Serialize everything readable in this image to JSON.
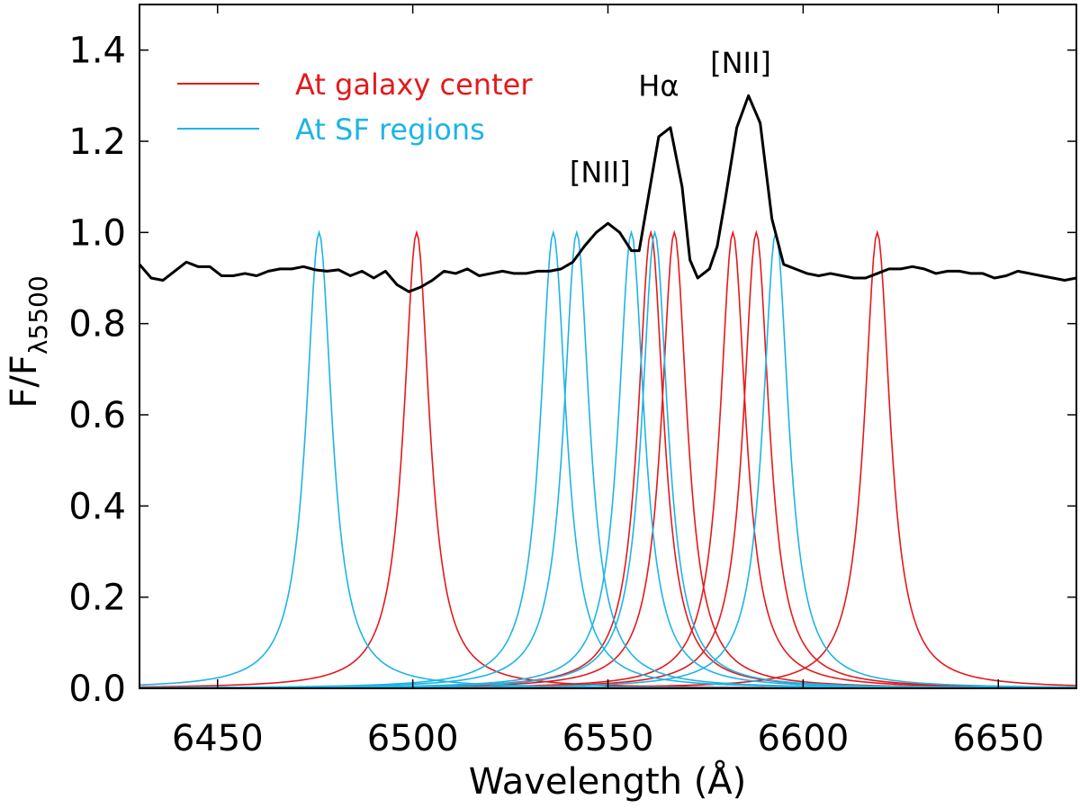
{
  "chart_data": {
    "type": "line",
    "title": "",
    "xlabel": "Wavelength (Å)",
    "ylabel_main": "F/F",
    "ylabel_sub": "λ5500",
    "xlim": [
      6430,
      6670
    ],
    "ylim": [
      0.0,
      1.5
    ],
    "xticks": [
      6450,
      6500,
      6550,
      6600,
      6650
    ],
    "yticks": [
      0.0,
      0.2,
      0.4,
      0.6,
      0.8,
      1.0,
      1.2,
      1.4
    ],
    "xtick_labels": [
      "6450",
      "6500",
      "6550",
      "6600",
      "6650"
    ],
    "ytick_labels": [
      "0.0",
      "0.2",
      "0.4",
      "0.6",
      "0.8",
      "1.0",
      "1.2",
      "1.4"
    ],
    "grid": false,
    "legend": {
      "placement": "top-left",
      "entries": [
        {
          "label": "At galaxy center",
          "color": "#e31a1c"
        },
        {
          "label": "At SF regions",
          "color": "#1eb4e6"
        }
      ]
    },
    "annotations": [
      {
        "text": "[NII]",
        "x": 6548,
        "y": 1.11
      },
      {
        "text": "Hα",
        "x": 6563,
        "y": 1.3
      },
      {
        "text": "[NII]",
        "x": 6584,
        "y": 1.35
      }
    ],
    "filter_width_angstrom": 8,
    "series": [
      {
        "name": "At galaxy center",
        "color": "#e31a1c",
        "kind": "filter",
        "centers": [
          6501,
          6561,
          6567,
          6582,
          6588,
          6619
        ],
        "peak": 1.0
      },
      {
        "name": "At SF regions",
        "color": "#1eb4e6",
        "kind": "filter",
        "centers": [
          6476,
          6536,
          6542,
          6556,
          6562,
          6593
        ],
        "peak": 1.0
      },
      {
        "name": "Spectrum",
        "color": "#000000",
        "kind": "spectrum",
        "x": [
          6430,
          6433,
          6436,
          6439,
          6442,
          6445,
          6448,
          6451,
          6454,
          6457,
          6460,
          6463,
          6466,
          6469,
          6472,
          6475,
          6478,
          6481,
          6484,
          6487,
          6490,
          6493,
          6496,
          6499,
          6502,
          6505,
          6508,
          6511,
          6514,
          6517,
          6520,
          6523,
          6526,
          6529,
          6532,
          6535,
          6538,
          6541,
          6544,
          6547,
          6550,
          6553,
          6556,
          6558,
          6560,
          6563,
          6566,
          6569,
          6571,
          6573,
          6576,
          6578,
          6580,
          6583,
          6586,
          6589,
          6592,
          6595,
          6598,
          6601,
          6604,
          6607,
          6610,
          6613,
          6616,
          6619,
          6622,
          6625,
          6628,
          6631,
          6634,
          6637,
          6640,
          6643,
          6646,
          6649,
          6652,
          6655,
          6658,
          6661,
          6664,
          6667,
          6670
        ],
        "y": [
          0.93,
          0.9,
          0.895,
          0.915,
          0.935,
          0.925,
          0.925,
          0.905,
          0.905,
          0.91,
          0.905,
          0.915,
          0.92,
          0.92,
          0.925,
          0.918,
          0.915,
          0.918,
          0.905,
          0.915,
          0.9,
          0.915,
          0.885,
          0.87,
          0.88,
          0.895,
          0.915,
          0.91,
          0.92,
          0.905,
          0.91,
          0.915,
          0.91,
          0.91,
          0.915,
          0.915,
          0.92,
          0.935,
          0.97,
          1.0,
          1.02,
          1.0,
          0.96,
          0.96,
          1.06,
          1.21,
          1.23,
          1.1,
          0.94,
          0.9,
          0.92,
          0.97,
          1.07,
          1.23,
          1.3,
          1.24,
          1.03,
          0.93,
          0.92,
          0.91,
          0.905,
          0.91,
          0.905,
          0.9,
          0.9,
          0.91,
          0.92,
          0.92,
          0.925,
          0.92,
          0.91,
          0.915,
          0.915,
          0.91,
          0.91,
          0.9,
          0.905,
          0.915,
          0.91,
          0.905,
          0.9,
          0.895,
          0.9
        ]
      }
    ]
  }
}
